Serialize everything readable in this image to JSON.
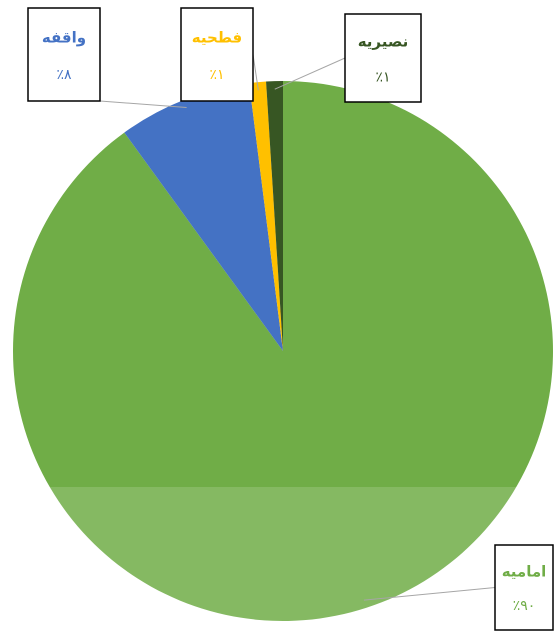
{
  "chart_data": {
    "type": "pie",
    "categories": [
      "امامیه",
      "واقفه",
      "فطحیه",
      "نصیریه"
    ],
    "values": [
      90,
      8,
      1,
      1
    ],
    "value_labels": [
      "٪۹۰",
      "٪۸",
      "٪۱",
      "٪۱"
    ],
    "colors": [
      "#70ad47",
      "#4472c4",
      "#ffc000",
      "#375623"
    ]
  }
}
